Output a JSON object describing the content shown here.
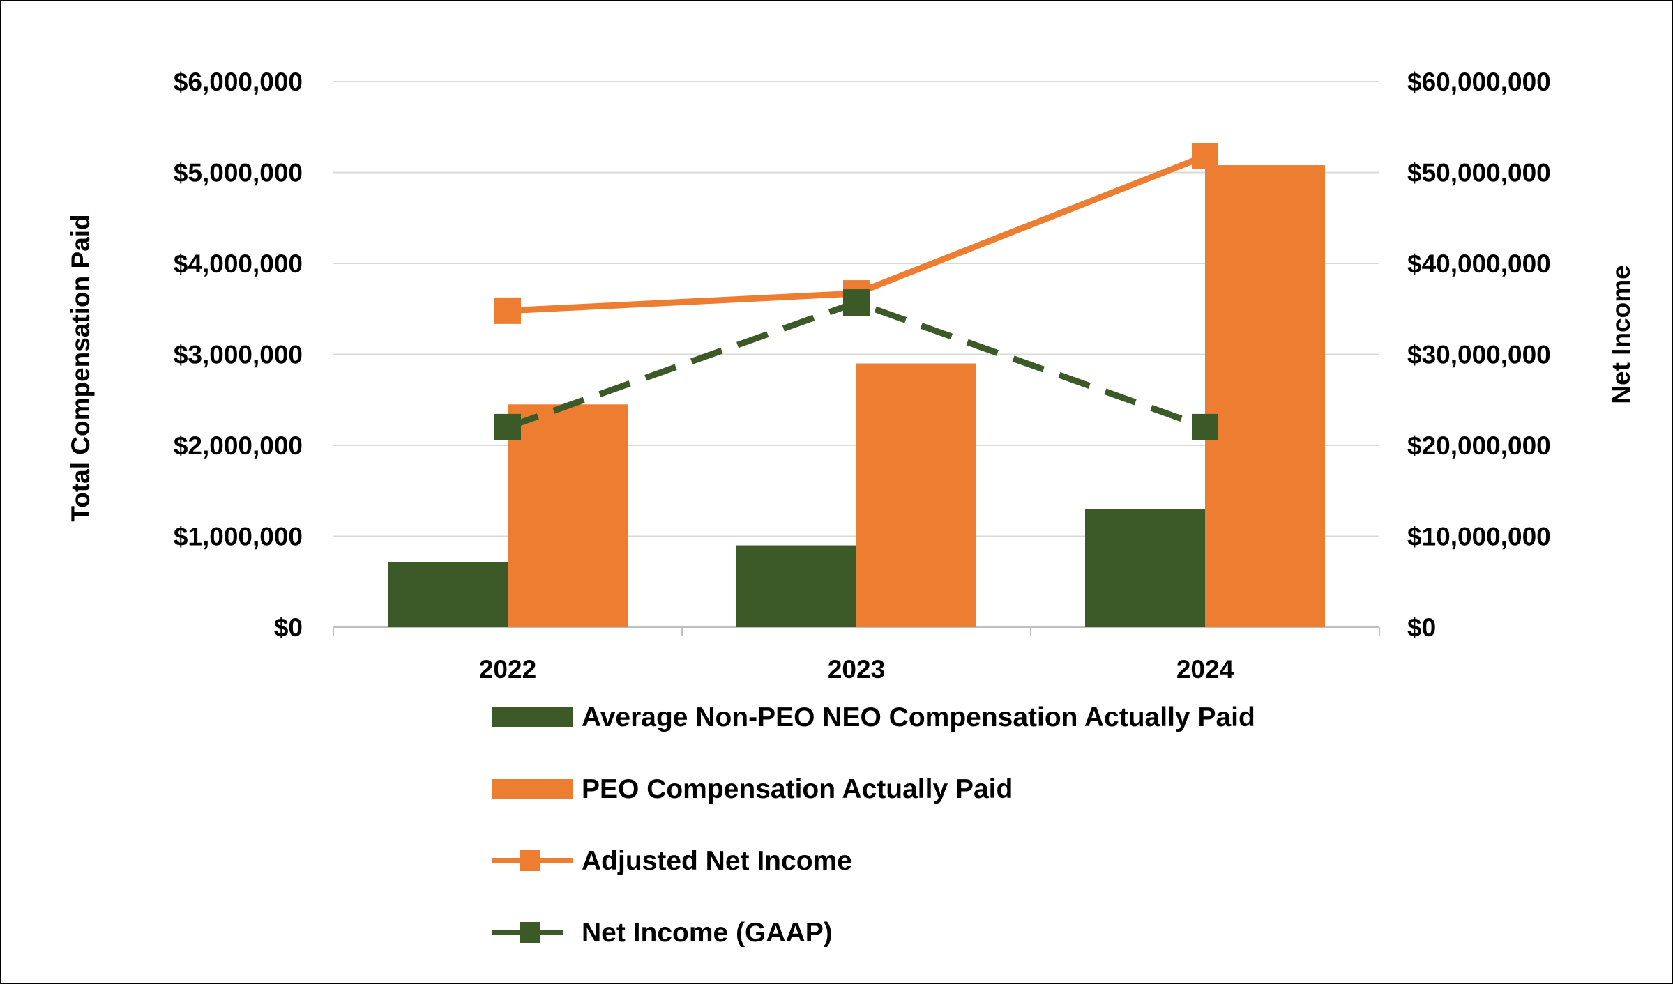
{
  "chart_data": {
    "type": "bar",
    "categories": [
      "2022",
      "2023",
      "2024"
    ],
    "left_axis": {
      "label": "Total Compensation Paid",
      "range": [
        0,
        6000000
      ],
      "ticks": [
        0,
        1000000,
        2000000,
        3000000,
        4000000,
        5000000,
        6000000
      ],
      "tick_labels": [
        "$0",
        "$1,000,000",
        "$2,000,000",
        "$3,000,000",
        "$4,000,000",
        "$5,000,000",
        "$6,000,000"
      ]
    },
    "right_axis": {
      "label": "Net Income",
      "range": [
        0,
        60000000
      ],
      "ticks": [
        0,
        10000000,
        20000000,
        30000000,
        40000000,
        50000000,
        60000000
      ],
      "tick_labels": [
        "$0",
        "$10,000,000",
        "$20,000,000",
        "$30,000,000",
        "$40,000,000",
        "$50,000,000",
        "$60,000,000"
      ]
    },
    "grid": true,
    "legend_position": "bottom",
    "series": [
      {
        "name": "Average Non-PEO NEO Compensation Actually Paid",
        "kind": "bar",
        "axis": "left",
        "color": "#3b5a27",
        "values": [
          720000,
          900000,
          1300000
        ]
      },
      {
        "name": "PEO Compensation Actually Paid",
        "kind": "bar",
        "axis": "left",
        "color": "#ed7d31",
        "values": [
          2450000,
          2900000,
          5080000
        ]
      },
      {
        "name": "Adjusted Net Income",
        "kind": "line",
        "style": "solid",
        "marker": "square",
        "axis": "right",
        "color": "#ed7d31",
        "values": [
          34800000,
          36700000,
          51800000
        ]
      },
      {
        "name": "Net Income (GAAP)",
        "kind": "line",
        "style": "dashed",
        "marker": "square",
        "axis": "right",
        "color": "#3b5a27",
        "values": [
          22000000,
          35700000,
          22000000
        ]
      }
    ]
  }
}
